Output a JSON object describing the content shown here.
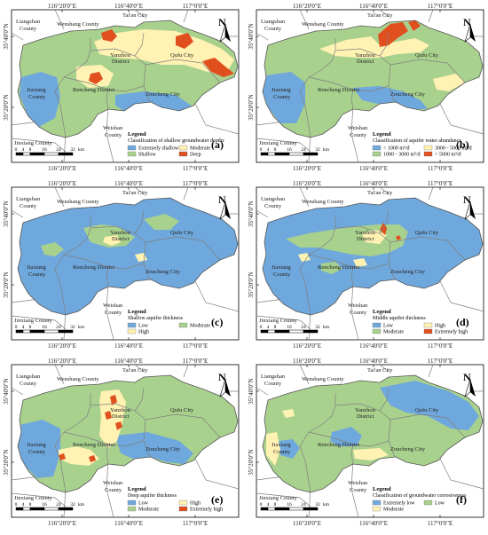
{
  "colors": {
    "blue": "#6fa8dc",
    "green": "#a9d18e",
    "yellow": "#fff2b3",
    "red": "#e0501f",
    "border": "#7f7f7f",
    "white": "#ffffff"
  },
  "coords": {
    "top": [
      "116°20'0\"E",
      "116°40'0\"E",
      "117°0'0\"E"
    ],
    "bottom": [
      "116°20'0\"E",
      "116°40'0\"E",
      "117°0'0\"E"
    ],
    "left": [
      "35°40'0\"N",
      "35°20'0\"N"
    ]
  },
  "places": {
    "liangshan": "Liangshan",
    "county": "County",
    "wenshang": "Wenshang County",
    "taian": "Tai'an City",
    "yanzhou1": "Yanzhou",
    "yanzhou2": "District",
    "qufu": "Qufu City",
    "jiaxiang1": "Jiaxiang",
    "jiaxiang2": "County",
    "rencheng": "Rencheng District",
    "zoucheng": "Zoucheng City",
    "weishan1": "Weishan",
    "weishan2": "County",
    "jinxiang": "Jinxiang County"
  },
  "north": "N",
  "scale": {
    "ticks": [
      "0",
      "4",
      "8",
      "16",
      "24",
      "32"
    ],
    "unit": "km"
  },
  "panels": [
    {
      "tag": "(a)",
      "legend_title": "Legend",
      "legend_subtitle": "Classification of shallow groundwater depths",
      "items": [
        {
          "label": "Extremely shallow",
          "color": "#6fa8dc"
        },
        {
          "label": "Moderate",
          "color": "#fff2b3"
        },
        {
          "label": "Shallow",
          "color": "#a9d18e"
        },
        {
          "label": "Deep",
          "color": "#e0501f"
        }
      ]
    },
    {
      "tag": "(b)",
      "legend_title": "Legend",
      "legend_subtitle": "Classification of aquifer water abundance",
      "items": [
        {
          "label": "< 1000 m³/d",
          "color": "#6fa8dc"
        },
        {
          "label": "3000 - 5000 m³/d",
          "color": "#fff2b3"
        },
        {
          "label": "1000 - 3000 m³/d",
          "color": "#a9d18e"
        },
        {
          "label": "> 5000 m³/d",
          "color": "#e0501f"
        }
      ]
    },
    {
      "tag": "(c)",
      "legend_title": "Legend",
      "legend_subtitle": "Shallow aquifer thickness",
      "items": [
        {
          "label": "Low",
          "color": "#6fa8dc"
        },
        {
          "label": "Moderate",
          "color": "#a9d18e"
        },
        {
          "label": "High",
          "color": "#fff2b3"
        }
      ]
    },
    {
      "tag": "(d)",
      "legend_title": "Legend",
      "legend_subtitle": "Middle aquifer thickness",
      "items": [
        {
          "label": "Low",
          "color": "#6fa8dc"
        },
        {
          "label": "High",
          "color": "#fff2b3"
        },
        {
          "label": "Moderate",
          "color": "#a9d18e"
        },
        {
          "label": "Extremely high",
          "color": "#e0501f"
        }
      ]
    },
    {
      "tag": "(e)",
      "legend_title": "Legend",
      "legend_subtitle": "Deep aquifer thickness",
      "items": [
        {
          "label": "Low",
          "color": "#6fa8dc"
        },
        {
          "label": "High",
          "color": "#fff2b3"
        },
        {
          "label": "Moderate",
          "color": "#a9d18e"
        },
        {
          "label": "Extremely high",
          "color": "#e0501f"
        }
      ]
    },
    {
      "tag": "(f)",
      "legend_title": "Legend",
      "legend_subtitle": "Classification of groundwater corrosiveness",
      "items": [
        {
          "label": "Extremely low",
          "color": "#6fa8dc"
        },
        {
          "label": "Low",
          "color": "#a9d18e"
        },
        {
          "label": "Moderate",
          "color": "#fff2b3"
        }
      ]
    }
  ]
}
